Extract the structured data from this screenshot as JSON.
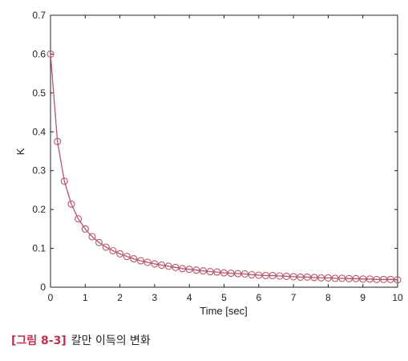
{
  "chart_data": {
    "type": "line",
    "xlabel": "Time [sec]",
    "ylabel": "K",
    "xlim": [
      0,
      10
    ],
    "ylim": [
      0,
      0.7
    ],
    "xticks": [
      "0",
      "1",
      "2",
      "3",
      "4",
      "5",
      "6",
      "7",
      "8",
      "9",
      "10"
    ],
    "yticks": [
      "0",
      "0.1",
      "0.2",
      "0.3",
      "0.4",
      "0.5",
      "0.6",
      "0.7"
    ],
    "grid": false,
    "marker": "circle",
    "color": "#b5566a",
    "series": [
      {
        "x": [
          0,
          0.2,
          0.4,
          0.6,
          0.8,
          1.0,
          1.2,
          1.4,
          1.6,
          1.8,
          2.0,
          2.2,
          2.4,
          2.6,
          2.8,
          3.0,
          3.2,
          3.4,
          3.6,
          3.8,
          4.0,
          4.2,
          4.4,
          4.6,
          4.8,
          5.0,
          5.2,
          5.4,
          5.6,
          5.8,
          6.0,
          6.2,
          6.4,
          6.6,
          6.8,
          7.0,
          7.2,
          7.4,
          7.6,
          7.8,
          8.0,
          8.2,
          8.4,
          8.6,
          8.8,
          9.0,
          9.2,
          9.4,
          9.6,
          9.8,
          10.0
        ],
        "y": [
          0.6,
          0.375,
          0.273,
          0.214,
          0.176,
          0.15,
          0.13,
          0.115,
          0.103,
          0.094,
          0.086,
          0.079,
          0.073,
          0.068,
          0.064,
          0.06,
          0.057,
          0.054,
          0.051,
          0.048,
          0.046,
          0.044,
          0.042,
          0.04,
          0.039,
          0.037,
          0.036,
          0.035,
          0.034,
          0.032,
          0.031,
          0.03,
          0.03,
          0.029,
          0.028,
          0.027,
          0.026,
          0.026,
          0.025,
          0.024,
          0.024,
          0.023,
          0.023,
          0.022,
          0.022,
          0.021,
          0.021,
          0.02,
          0.02,
          0.02,
          0.019
        ]
      }
    ]
  },
  "caption": {
    "label": "[그림 8-3]",
    "text": "칼만 이득의 변화"
  }
}
